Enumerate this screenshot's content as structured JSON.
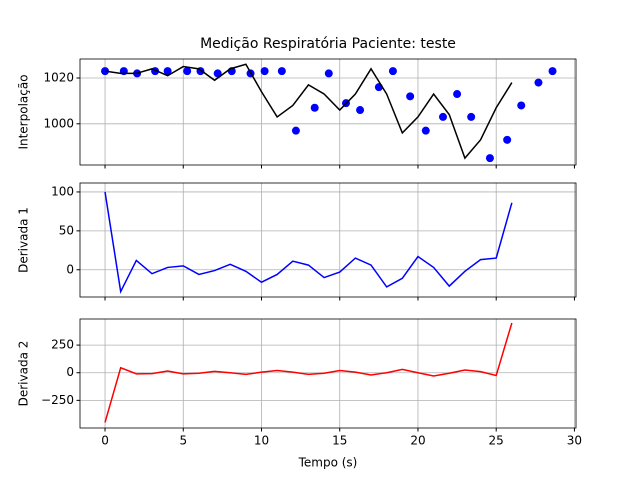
{
  "chart_data": [
    {
      "type": "line",
      "title": "Medição Respiratória Paciente: teste",
      "ylabel": "Interpolação",
      "xlim": [
        -1.6,
        30.1
      ],
      "ylim": [
        982,
        1028.3
      ],
      "xticks": [
        0,
        5,
        10,
        15,
        20,
        25,
        30
      ],
      "yticks": [
        1000,
        1020
      ],
      "grid": true,
      "series": [
        {
          "type": "scatter",
          "color": "#0000ff",
          "x": [
            0,
            1.2,
            2.05,
            3.2,
            4.0,
            5.25,
            6.1,
            7.2,
            8.1,
            9.3,
            10.2,
            11.3,
            12.2,
            13.4,
            14.3,
            15.4,
            16.3,
            17.5,
            18.4,
            19.5,
            20.5,
            21.6,
            22.5,
            23.4,
            24.6,
            25.7,
            26.6,
            27.7,
            28.6
          ],
          "values": [
            1023,
            1023,
            1022,
            1023,
            1023,
            1023,
            1023,
            1022,
            1023,
            1022,
            1023,
            1023,
            997,
            1007,
            1022,
            1009,
            1006,
            1016,
            1023,
            1012,
            997,
            1003,
            1013,
            1003,
            985,
            993,
            1008,
            1018,
            1023
          ]
        },
        {
          "type": "line",
          "color": "#000000",
          "x": [
            0,
            1,
            2,
            3,
            4,
            5,
            6,
            7,
            8,
            9,
            10,
            11,
            12,
            13,
            14,
            15,
            16,
            17,
            18,
            19,
            20,
            21,
            22,
            23,
            24,
            25,
            26
          ],
          "values": [
            1023,
            1022,
            1022,
            1024,
            1021,
            1025,
            1024,
            1019,
            1024,
            1026,
            1014,
            1003,
            1008,
            1017,
            1013,
            1006,
            1013,
            1024,
            1013,
            996,
            1003,
            1013,
            1004,
            985,
            993,
            1007,
            1018
          ]
        }
      ]
    },
    {
      "type": "line",
      "ylabel": "Derivada 1",
      "xlim": [
        -1.6,
        30.1
      ],
      "ylim": [
        -35,
        111.5
      ],
      "xticks": [
        0,
        5,
        10,
        15,
        20,
        25,
        30
      ],
      "yticks": [
        0,
        50,
        100
      ],
      "grid": true,
      "series": [
        {
          "type": "line",
          "color": "#0000ff",
          "x": [
            0,
            1,
            2,
            3,
            4,
            5,
            6,
            7,
            8,
            9,
            10,
            11,
            12,
            13,
            14,
            15,
            16,
            17,
            18,
            19,
            20,
            21,
            22,
            23,
            24,
            25,
            26
          ],
          "values": [
            100,
            -28,
            12,
            -5,
            3,
            5,
            -6,
            -1,
            7,
            -2,
            -16,
            -6,
            11,
            6,
            -10,
            -3,
            15,
            6,
            -22,
            -11,
            17,
            3,
            -21,
            -2,
            13,
            15,
            86
          ]
        }
      ]
    },
    {
      "type": "line",
      "ylabel": "Derivada 2",
      "xlabel": "Tempo (s)",
      "xlim": [
        -1.6,
        30.1
      ],
      "ylim": [
        -500,
        486
      ],
      "xticks": [
        0,
        5,
        10,
        15,
        20,
        25,
        30
      ],
      "yticks": [
        {
          "value": -250,
          "label": "−250"
        },
        0,
        250
      ],
      "grid": true,
      "series": [
        {
          "type": "line",
          "color": "#ff0000",
          "x": [
            0,
            1,
            2,
            3,
            4,
            5,
            6,
            7,
            8,
            9,
            10,
            11,
            12,
            13,
            14,
            15,
            16,
            17,
            18,
            19,
            20,
            21,
            22,
            23,
            24,
            25,
            26
          ],
          "values": [
            -450,
            45,
            -10,
            -8,
            15,
            -10,
            -5,
            12,
            0,
            -15,
            5,
            20,
            5,
            -15,
            -5,
            20,
            5,
            -20,
            0,
            30,
            0,
            -30,
            -5,
            25,
            10,
            -25,
            450
          ]
        }
      ]
    }
  ]
}
